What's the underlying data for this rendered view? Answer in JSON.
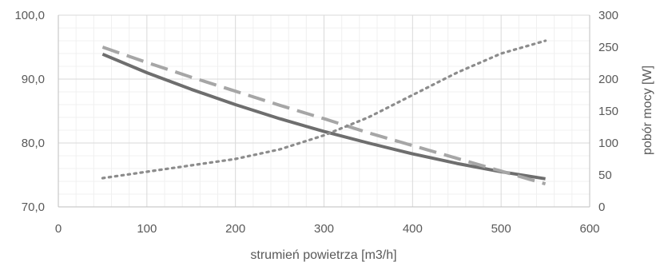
{
  "chart_data": {
    "type": "line",
    "title": "",
    "xlabel": "strumień powietrza [m3/h]",
    "ylabel": "",
    "y2label": "pobór mocy [W]",
    "xlim": [
      0,
      600
    ],
    "ylim": [
      70,
      100
    ],
    "y2lim": [
      0,
      300
    ],
    "x_ticks": [
      0,
      100,
      200,
      300,
      400,
      500,
      600
    ],
    "x_tick_labels": [
      "0",
      "100",
      "200",
      "300",
      "400",
      "500",
      "600"
    ],
    "y_ticks": [
      70,
      80,
      90,
      100
    ],
    "y_tick_labels": [
      "70,0",
      "80,0",
      "90,0",
      "100,0"
    ],
    "y2_ticks": [
      0,
      50,
      100,
      150,
      200,
      250,
      300
    ],
    "y2_tick_labels": [
      "0",
      "50",
      "100",
      "150",
      "200",
      "250",
      "300"
    ],
    "grid": true,
    "legend": "none",
    "series": [
      {
        "axis": "left",
        "style": "solid",
        "color": "#6e6e6e",
        "x": [
          50,
          100,
          150,
          200,
          250,
          300,
          350,
          400,
          450,
          500,
          550
        ],
        "y": [
          93.9,
          91.0,
          88.4,
          86.0,
          83.8,
          81.8,
          80.0,
          78.3,
          76.8,
          75.5,
          74.4
        ]
      },
      {
        "axis": "left",
        "style": "dashed",
        "color": "#a6a6a6",
        "x": [
          50,
          100,
          150,
          200,
          250,
          300,
          350,
          400,
          450,
          500,
          550
        ],
        "y": [
          95.0,
          92.6,
          90.3,
          88.1,
          85.9,
          83.8,
          81.6,
          79.6,
          77.6,
          75.6,
          73.6
        ]
      },
      {
        "axis": "right",
        "style": "dotted",
        "color": "#8c8c8c",
        "x": [
          50,
          100,
          150,
          200,
          250,
          300,
          350,
          400,
          450,
          500,
          550
        ],
        "y": [
          45,
          55,
          65,
          75,
          90,
          112,
          140,
          175,
          210,
          240,
          260
        ]
      }
    ]
  }
}
